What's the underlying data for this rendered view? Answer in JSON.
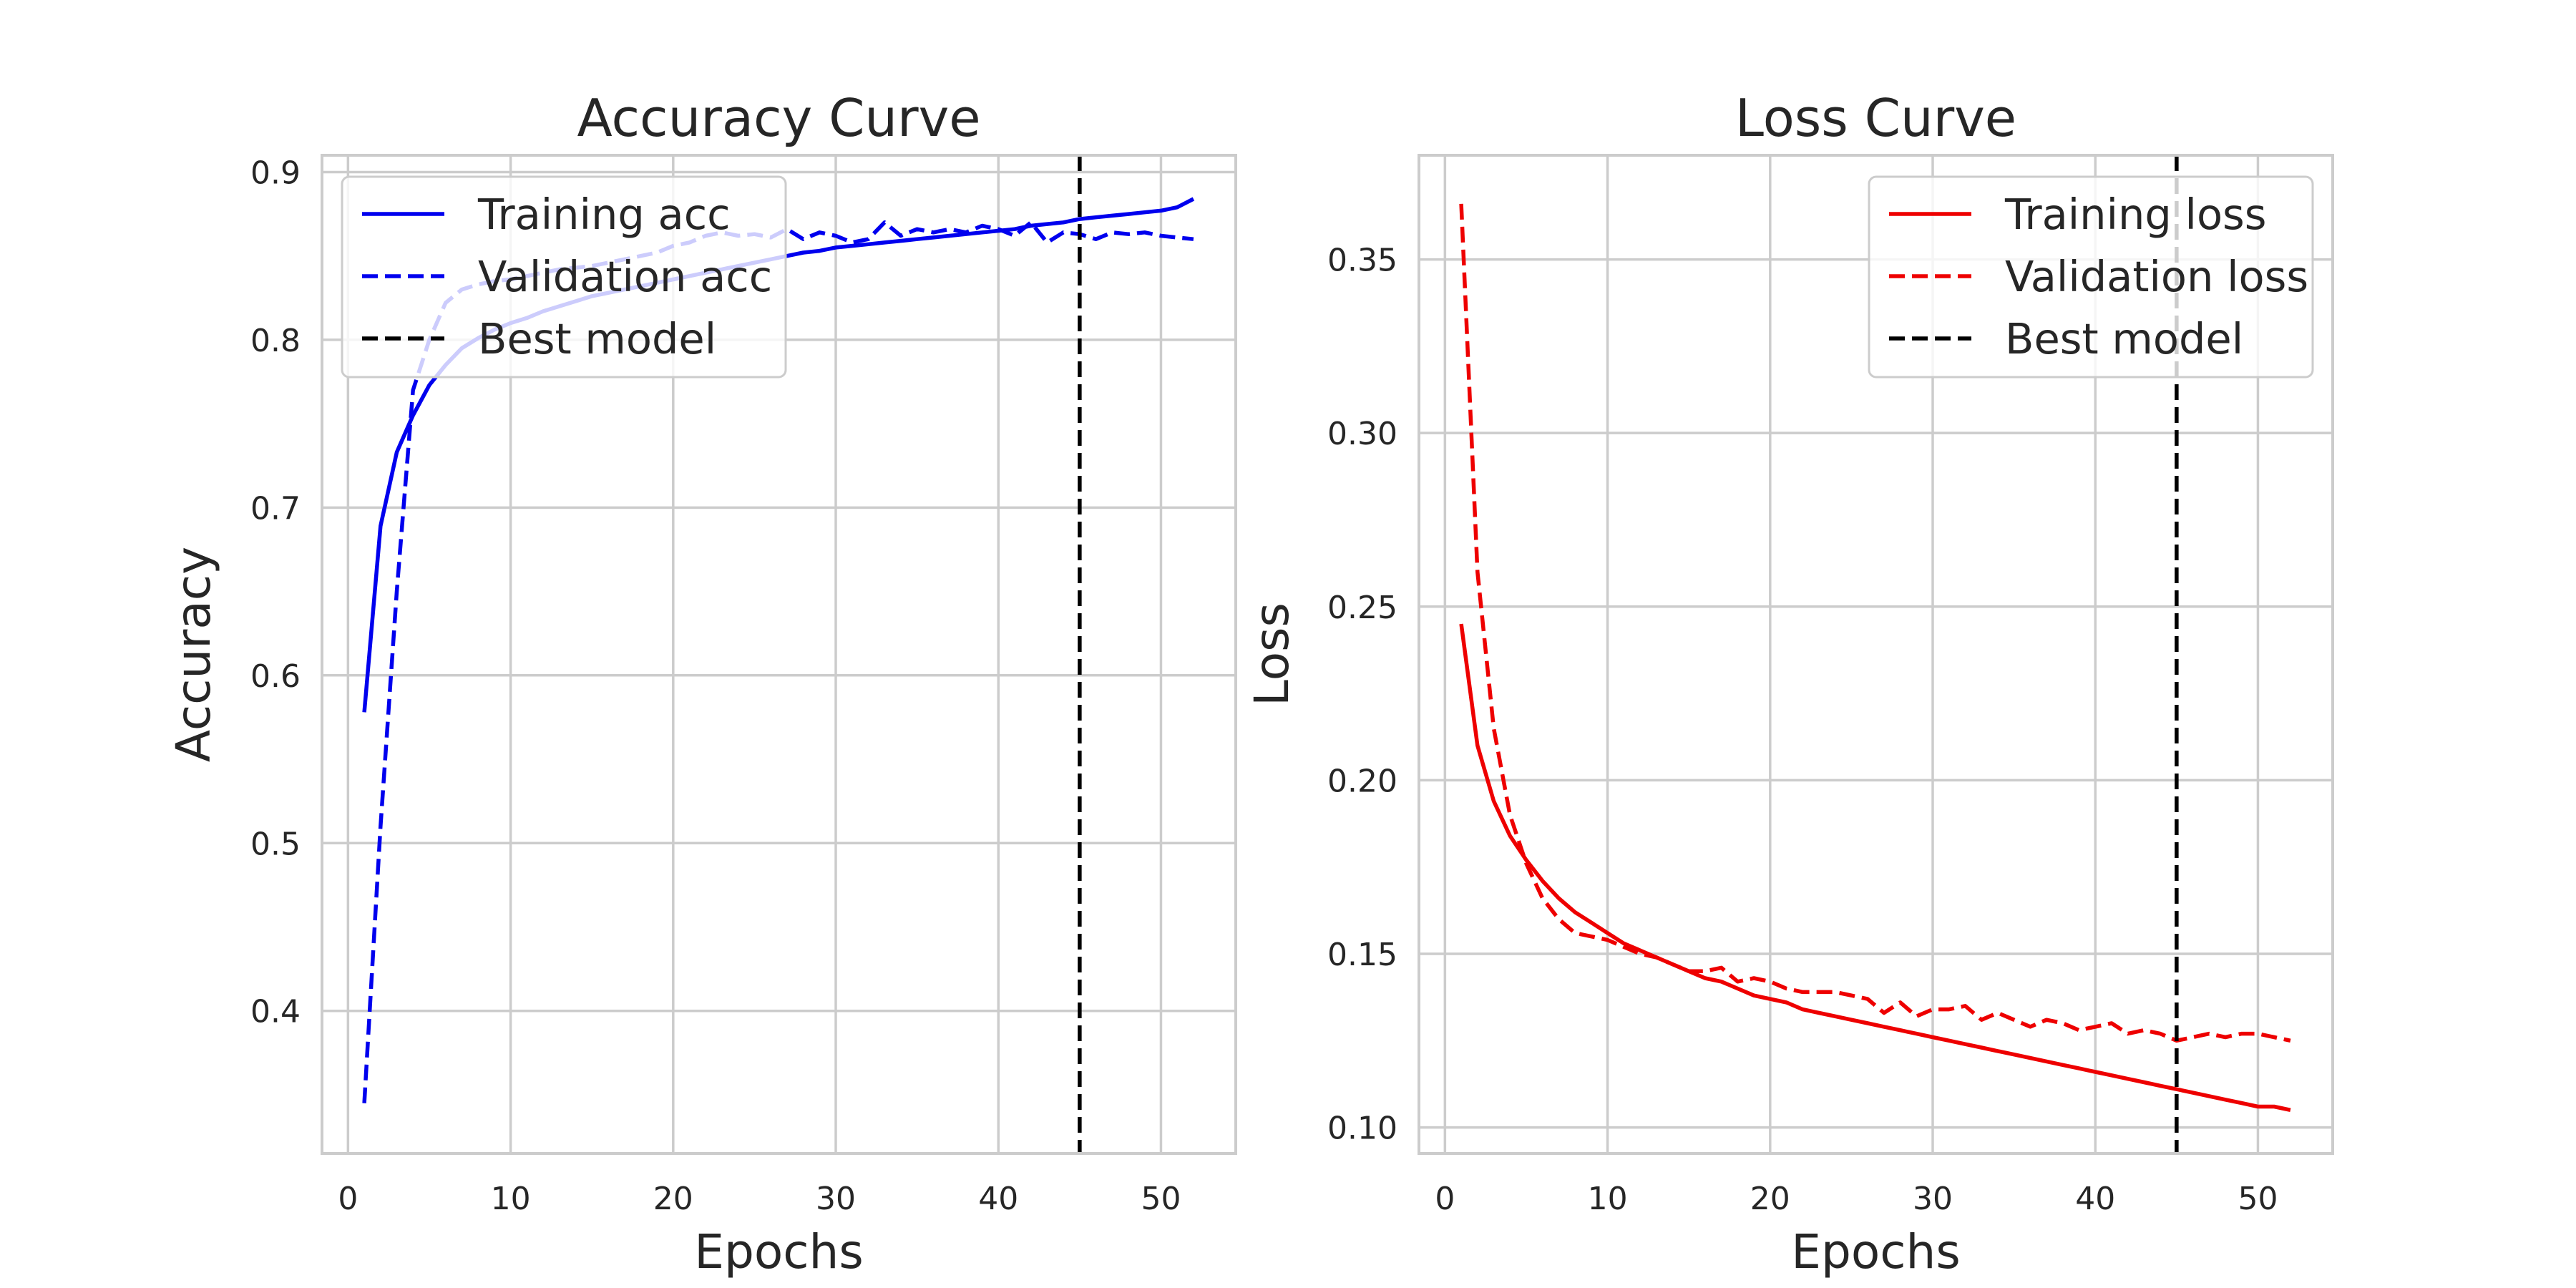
{
  "chart_data": [
    {
      "type": "line",
      "title": "Accuracy Curve",
      "xlabel": "Epochs",
      "ylabel": "Accuracy",
      "xlim": [
        -1.6,
        54.6
      ],
      "ylim": [
        0.315,
        0.91
      ],
      "xticks": [
        0,
        10,
        20,
        30,
        40,
        50
      ],
      "yticks": [
        0.4,
        0.5,
        0.6,
        0.7,
        0.8,
        0.9
      ],
      "xtick_labels": [
        "0",
        "10",
        "20",
        "30",
        "40",
        "50"
      ],
      "ytick_labels": [
        "0.4",
        "0.5",
        "0.6",
        "0.7",
        "0.8",
        "0.9"
      ],
      "grid": true,
      "legend_position": "top-left",
      "best_epoch": 45,
      "series": [
        {
          "name": "Training acc",
          "color": "#0000ee",
          "style": "solid",
          "x": [
            1,
            2,
            3,
            4,
            5,
            6,
            7,
            8,
            9,
            10,
            11,
            12,
            13,
            14,
            15,
            16,
            17,
            18,
            19,
            20,
            21,
            22,
            23,
            24,
            25,
            26,
            27,
            28,
            29,
            30,
            31,
            32,
            33,
            34,
            35,
            36,
            37,
            38,
            39,
            40,
            41,
            42,
            43,
            44,
            45,
            46,
            47,
            48,
            49,
            50,
            51,
            52
          ],
          "y": [
            0.578,
            0.689,
            0.733,
            0.755,
            0.773,
            0.785,
            0.795,
            0.801,
            0.806,
            0.81,
            0.813,
            0.817,
            0.82,
            0.823,
            0.826,
            0.828,
            0.83,
            0.832,
            0.834,
            0.836,
            0.838,
            0.84,
            0.842,
            0.844,
            0.846,
            0.848,
            0.85,
            0.852,
            0.853,
            0.855,
            0.856,
            0.857,
            0.858,
            0.859,
            0.86,
            0.861,
            0.862,
            0.863,
            0.864,
            0.865,
            0.866,
            0.868,
            0.869,
            0.87,
            0.872,
            0.873,
            0.874,
            0.875,
            0.876,
            0.877,
            0.879,
            0.884
          ]
        },
        {
          "name": "Validation acc",
          "color": "#0000ee",
          "style": "dashed",
          "x": [
            1,
            2,
            3,
            4,
            5,
            6,
            7,
            8,
            9,
            10,
            11,
            12,
            13,
            14,
            15,
            16,
            17,
            18,
            19,
            20,
            21,
            22,
            23,
            24,
            25,
            26,
            27,
            28,
            29,
            30,
            31,
            32,
            33,
            34,
            35,
            36,
            37,
            38,
            39,
            40,
            41,
            42,
            43,
            44,
            45,
            46,
            47,
            48,
            49,
            50,
            51,
            52
          ],
          "y": [
            0.345,
            0.51,
            0.65,
            0.77,
            0.8,
            0.822,
            0.83,
            0.833,
            0.835,
            0.836,
            0.838,
            0.84,
            0.842,
            0.843,
            0.844,
            0.846,
            0.848,
            0.85,
            0.852,
            0.856,
            0.858,
            0.862,
            0.864,
            0.862,
            0.863,
            0.861,
            0.866,
            0.86,
            0.864,
            0.862,
            0.858,
            0.86,
            0.87,
            0.862,
            0.866,
            0.864,
            0.866,
            0.864,
            0.868,
            0.866,
            0.862,
            0.87,
            0.858,
            0.864,
            0.863,
            0.86,
            0.864,
            0.863,
            0.864,
            0.862,
            0.861,
            0.86
          ]
        },
        {
          "name": "Best model",
          "color": "#000000",
          "style": "dashed"
        }
      ]
    },
    {
      "type": "line",
      "title": "Loss Curve",
      "xlabel": "Epochs",
      "ylabel": "Loss",
      "xlim": [
        -1.6,
        54.6
      ],
      "ylim": [
        0.0925,
        0.38
      ],
      "xticks": [
        0,
        10,
        20,
        30,
        40,
        50
      ],
      "yticks": [
        0.1,
        0.15,
        0.2,
        0.25,
        0.3,
        0.35
      ],
      "xtick_labels": [
        "0",
        "10",
        "20",
        "30",
        "40",
        "50"
      ],
      "ytick_labels": [
        "0.10",
        "0.15",
        "0.20",
        "0.25",
        "0.30",
        "0.35"
      ],
      "grid": true,
      "legend_position": "top-right",
      "best_epoch": 45,
      "series": [
        {
          "name": "Training loss",
          "color": "#ee0000",
          "style": "solid",
          "x": [
            1,
            2,
            3,
            4,
            5,
            6,
            7,
            8,
            9,
            10,
            11,
            12,
            13,
            14,
            15,
            16,
            17,
            18,
            19,
            20,
            21,
            22,
            23,
            24,
            25,
            26,
            27,
            28,
            29,
            30,
            31,
            32,
            33,
            34,
            35,
            36,
            37,
            38,
            39,
            40,
            41,
            42,
            43,
            44,
            45,
            46,
            47,
            48,
            49,
            50,
            51,
            52
          ],
          "y": [
            0.245,
            0.21,
            0.194,
            0.184,
            0.177,
            0.171,
            0.166,
            0.162,
            0.159,
            0.156,
            0.153,
            0.151,
            0.149,
            0.147,
            0.145,
            0.143,
            0.142,
            0.14,
            0.138,
            0.137,
            0.136,
            0.134,
            0.133,
            0.132,
            0.131,
            0.13,
            0.129,
            0.128,
            0.127,
            0.126,
            0.125,
            0.124,
            0.123,
            0.122,
            0.121,
            0.12,
            0.119,
            0.118,
            0.117,
            0.116,
            0.115,
            0.114,
            0.113,
            0.112,
            0.111,
            0.11,
            0.109,
            0.108,
            0.107,
            0.106,
            0.106,
            0.105
          ]
        },
        {
          "name": "Validation loss",
          "color": "#ee0000",
          "style": "dashed",
          "x": [
            1,
            2,
            3,
            4,
            5,
            6,
            7,
            8,
            9,
            10,
            11,
            12,
            13,
            14,
            15,
            16,
            17,
            18,
            19,
            20,
            21,
            22,
            23,
            24,
            25,
            26,
            27,
            28,
            29,
            30,
            31,
            32,
            33,
            34,
            35,
            36,
            37,
            38,
            39,
            40,
            41,
            42,
            43,
            44,
            45,
            46,
            47,
            48,
            49,
            50,
            51,
            52
          ],
          "y": [
            0.366,
            0.26,
            0.215,
            0.19,
            0.176,
            0.166,
            0.16,
            0.156,
            0.155,
            0.154,
            0.152,
            0.15,
            0.149,
            0.147,
            0.145,
            0.145,
            0.146,
            0.142,
            0.143,
            0.142,
            0.14,
            0.139,
            0.139,
            0.139,
            0.138,
            0.137,
            0.133,
            0.136,
            0.132,
            0.134,
            0.134,
            0.135,
            0.131,
            0.133,
            0.131,
            0.129,
            0.131,
            0.13,
            0.128,
            0.129,
            0.13,
            0.127,
            0.128,
            0.127,
            0.125,
            0.126,
            0.127,
            0.126,
            0.127,
            0.127,
            0.126,
            0.125
          ]
        },
        {
          "name": "Best model",
          "color": "#000000",
          "style": "dashed"
        }
      ]
    }
  ]
}
